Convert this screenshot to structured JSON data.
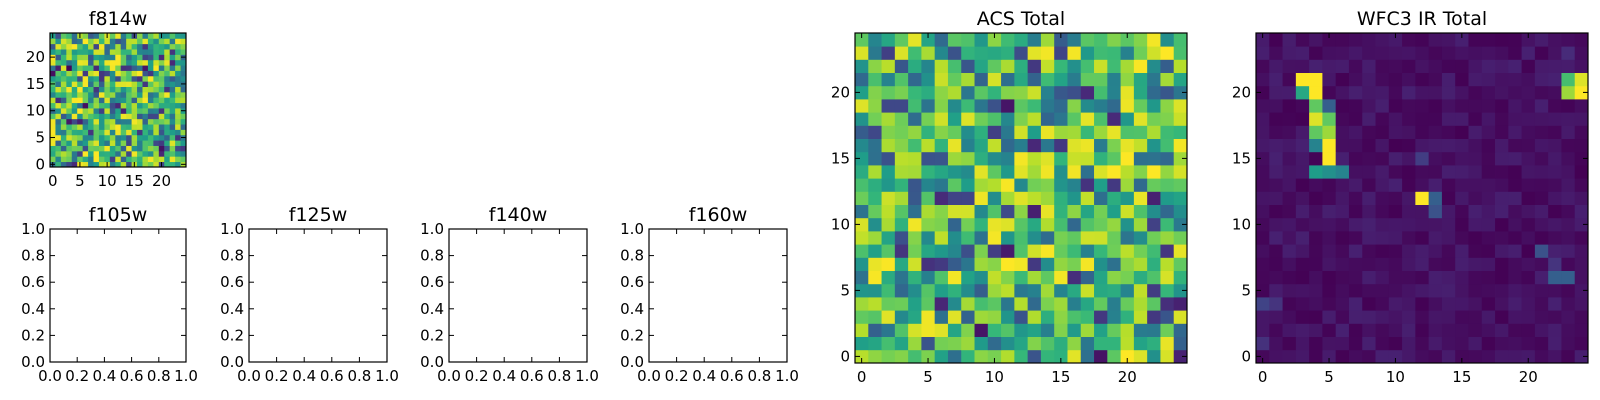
{
  "chart_data": [
    {
      "id": "f814w",
      "type": "heatmap",
      "title": "f814w",
      "colormap": "viridis",
      "grid_size": 25,
      "value_range": [
        0,
        1
      ],
      "seed": 814,
      "distribution": "noise",
      "xlim": [
        -0.5,
        24.5
      ],
      "ylim": [
        -0.5,
        24.5
      ],
      "xticks": [
        0,
        5,
        10,
        15,
        20
      ],
      "yticks": [
        0,
        5,
        10,
        15,
        20
      ],
      "xtick_labels": [
        "0",
        "5",
        "10",
        "15",
        "20"
      ],
      "ytick_labels": [
        "0",
        "5",
        "10",
        "15",
        "20"
      ]
    },
    {
      "id": "f105w",
      "type": "empty",
      "title": "f105w",
      "xlim": [
        0,
        1
      ],
      "ylim": [
        0,
        1
      ],
      "xticks": [
        0,
        0.2,
        0.4,
        0.6,
        0.8,
        1.0
      ],
      "yticks": [
        0,
        0.2,
        0.4,
        0.6,
        0.8,
        1.0
      ],
      "xtick_labels": [
        "0.0",
        "0.2",
        "0.4",
        "0.6",
        "0.8",
        "1.0"
      ],
      "ytick_labels": [
        "0.0",
        "0.2",
        "0.4",
        "0.6",
        "0.8",
        "1.0"
      ]
    },
    {
      "id": "f125w",
      "type": "empty",
      "title": "f125w",
      "xlim": [
        0,
        1
      ],
      "ylim": [
        0,
        1
      ],
      "xticks": [
        0,
        0.2,
        0.4,
        0.6,
        0.8,
        1.0
      ],
      "yticks": [
        0,
        0.2,
        0.4,
        0.6,
        0.8,
        1.0
      ],
      "xtick_labels": [
        "0.0",
        "0.2",
        "0.4",
        "0.6",
        "0.8",
        "1.0"
      ],
      "ytick_labels": [
        "0.0",
        "0.2",
        "0.4",
        "0.6",
        "0.8",
        "1.0"
      ]
    },
    {
      "id": "f140w",
      "type": "empty",
      "title": "f140w",
      "xlim": [
        0,
        1
      ],
      "ylim": [
        0,
        1
      ],
      "xticks": [
        0,
        0.2,
        0.4,
        0.6,
        0.8,
        1.0
      ],
      "yticks": [
        0,
        0.2,
        0.4,
        0.6,
        0.8,
        1.0
      ],
      "xtick_labels": [
        "0.0",
        "0.2",
        "0.4",
        "0.6",
        "0.8",
        "1.0"
      ],
      "ytick_labels": [
        "0.0",
        "0.2",
        "0.4",
        "0.6",
        "0.8",
        "1.0"
      ]
    },
    {
      "id": "f160w",
      "type": "empty",
      "title": "f160w",
      "xlim": [
        0,
        1
      ],
      "ylim": [
        0,
        1
      ],
      "xticks": [
        0,
        0.2,
        0.4,
        0.6,
        0.8,
        1.0
      ],
      "yticks": [
        0,
        0.2,
        0.4,
        0.6,
        0.8,
        1.0
      ],
      "xtick_labels": [
        "0.0",
        "0.2",
        "0.4",
        "0.6",
        "0.8",
        "1.0"
      ],
      "ytick_labels": [
        "0.0",
        "0.2",
        "0.4",
        "0.6",
        "0.8",
        "1.0"
      ]
    },
    {
      "id": "acs-total",
      "type": "heatmap",
      "title": "ACS Total",
      "colormap": "viridis",
      "grid_size": 25,
      "value_range": [
        0,
        1
      ],
      "seed": 2024,
      "distribution": "noise",
      "xlim": [
        -0.5,
        24.5
      ],
      "ylim": [
        -0.5,
        24.5
      ],
      "xticks": [
        0,
        5,
        10,
        15,
        20
      ],
      "yticks": [
        0,
        5,
        10,
        15,
        20
      ],
      "xtick_labels": [
        "0",
        "5",
        "10",
        "15",
        "20"
      ],
      "ytick_labels": [
        "0",
        "5",
        "10",
        "15",
        "20"
      ]
    },
    {
      "id": "wfc3-ir-total",
      "type": "heatmap",
      "title": "WFC3 IR Total",
      "colormap": "viridis",
      "grid_size": 25,
      "value_range": [
        0,
        1
      ],
      "seed": 3160,
      "distribution": "sparse",
      "background_range": [
        0.0,
        0.09
      ],
      "hot_cells": [
        {
          "col": 3,
          "row": 21,
          "value": 1.0
        },
        {
          "col": 4,
          "row": 21,
          "value": 1.0
        },
        {
          "col": 3,
          "row": 20,
          "value": 0.6
        },
        {
          "col": 4,
          "row": 20,
          "value": 1.0
        },
        {
          "col": 4,
          "row": 19,
          "value": 0.75
        },
        {
          "col": 5,
          "row": 19,
          "value": 0.3
        },
        {
          "col": 4,
          "row": 18,
          "value": 0.95
        },
        {
          "col": 5,
          "row": 18,
          "value": 0.75
        },
        {
          "col": 4,
          "row": 17,
          "value": 0.75
        },
        {
          "col": 5,
          "row": 17,
          "value": 0.85
        },
        {
          "col": 4,
          "row": 16,
          "value": 0.45
        },
        {
          "col": 5,
          "row": 16,
          "value": 1.0
        },
        {
          "col": 5,
          "row": 15,
          "value": 1.0
        },
        {
          "col": 4,
          "row": 14,
          "value": 0.55
        },
        {
          "col": 5,
          "row": 14,
          "value": 0.5
        },
        {
          "col": 6,
          "row": 14,
          "value": 0.45
        },
        {
          "col": 12,
          "row": 12,
          "value": 1.0
        },
        {
          "col": 13,
          "row": 12,
          "value": 0.3
        },
        {
          "col": 13,
          "row": 11,
          "value": 0.25
        },
        {
          "col": 12,
          "row": 15,
          "value": 0.18
        },
        {
          "col": 23,
          "row": 21,
          "value": 0.7
        },
        {
          "col": 24,
          "row": 21,
          "value": 0.95
        },
        {
          "col": 23,
          "row": 20,
          "value": 0.85
        },
        {
          "col": 24,
          "row": 20,
          "value": 1.0
        },
        {
          "col": 21,
          "row": 8,
          "value": 0.25
        },
        {
          "col": 22,
          "row": 7,
          "value": 0.15
        },
        {
          "col": 22,
          "row": 6,
          "value": 0.3
        },
        {
          "col": 23,
          "row": 6,
          "value": 0.3
        },
        {
          "col": 0,
          "row": 4,
          "value": 0.2
        },
        {
          "col": 1,
          "row": 4,
          "value": 0.15
        },
        {
          "col": 0,
          "row": 1,
          "value": 0.14
        },
        {
          "col": 23,
          "row": 23,
          "value": 0.12
        }
      ],
      "xlim": [
        -0.5,
        24.5
      ],
      "ylim": [
        -0.5,
        24.5
      ],
      "xticks": [
        0,
        5,
        10,
        15,
        20
      ],
      "yticks": [
        0,
        5,
        10,
        15,
        20
      ],
      "xtick_labels": [
        "0",
        "5",
        "10",
        "15",
        "20"
      ],
      "ytick_labels": [
        "0",
        "5",
        "10",
        "15",
        "20"
      ]
    }
  ]
}
